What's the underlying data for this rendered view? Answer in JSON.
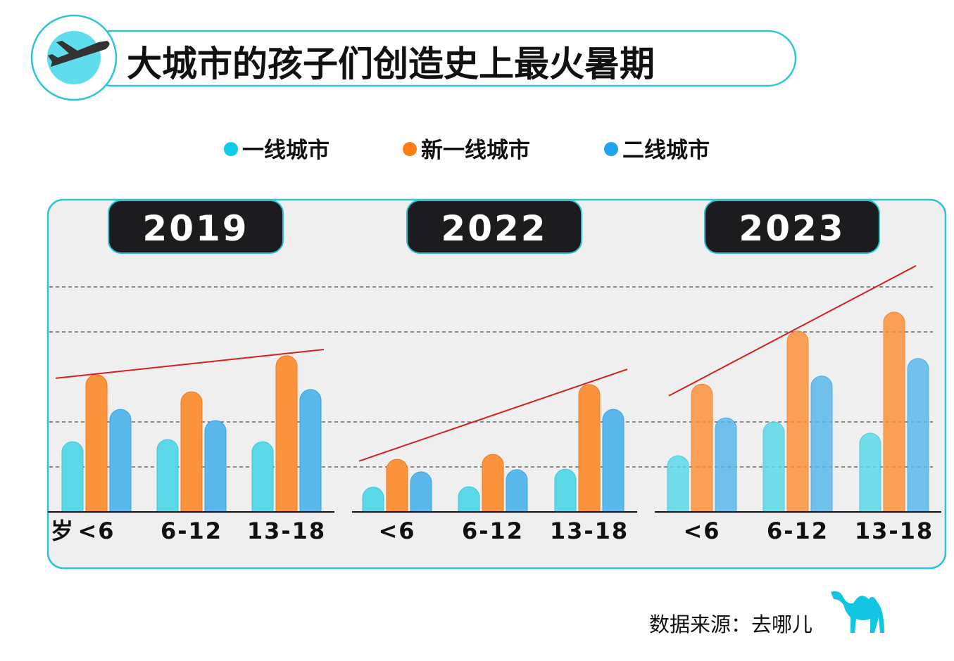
{
  "title": "大城市的孩子们创造史上最火暑期",
  "title_icon": "airplane-icon",
  "source": "数据来源：去哪儿",
  "source_logo": "camel-icon",
  "colors": {
    "tier1": "#5ad8e8",
    "new_tier1": "#fb923c",
    "tier2": "#5bb8ec",
    "trend": "#d42020",
    "accent": "#2bc4d8",
    "badge": "#1c1c1e"
  },
  "chart_data": {
    "type": "bar",
    "legend_position": "top",
    "grid": "dashed horizontal",
    "y_unit_label": "岁",
    "series_names": [
      "一线城市",
      "新一线城市",
      "二线城市"
    ],
    "ylim": [
      0,
      5.5
    ],
    "panels": [
      {
        "year": "2019",
        "categories": [
          "<6",
          "6-12",
          "13-18"
        ],
        "series": [
          {
            "name": "一线城市",
            "values": [
              1.56,
              1.61,
              1.56
            ]
          },
          {
            "name": "新一线城市",
            "values": [
              3.05,
              2.67,
              3.47
            ]
          },
          {
            "name": "二线城市",
            "values": [
              2.28,
              2.03,
              2.72
            ]
          }
        ],
        "trend": [
          2.97,
          3.61
        ]
      },
      {
        "year": "2022",
        "categories": [
          "<6",
          "6-12",
          "13-18"
        ],
        "series": [
          {
            "name": "一线城市",
            "values": [
              0.55,
              0.56,
              0.95
            ]
          },
          {
            "name": "新一线城市",
            "values": [
              1.17,
              1.28,
              2.83
            ]
          },
          {
            "name": "二线城市",
            "values": [
              0.89,
              0.94,
              2.28
            ]
          }
        ],
        "trend": [
          1.13,
          3.17
        ]
      },
      {
        "year": "2023",
        "categories": [
          "<6",
          "6-12",
          "13-18"
        ],
        "series": [
          {
            "name": "一线城市",
            "values": [
              1.25,
              2.0,
              1.75
            ]
          },
          {
            "name": "新一线城市",
            "values": [
              2.84,
              4.02,
              4.44
            ]
          },
          {
            "name": "二线城市",
            "values": [
              2.09,
              3.02,
              3.41
            ]
          }
        ],
        "trend": [
          2.58,
          5.47
        ]
      }
    ]
  }
}
